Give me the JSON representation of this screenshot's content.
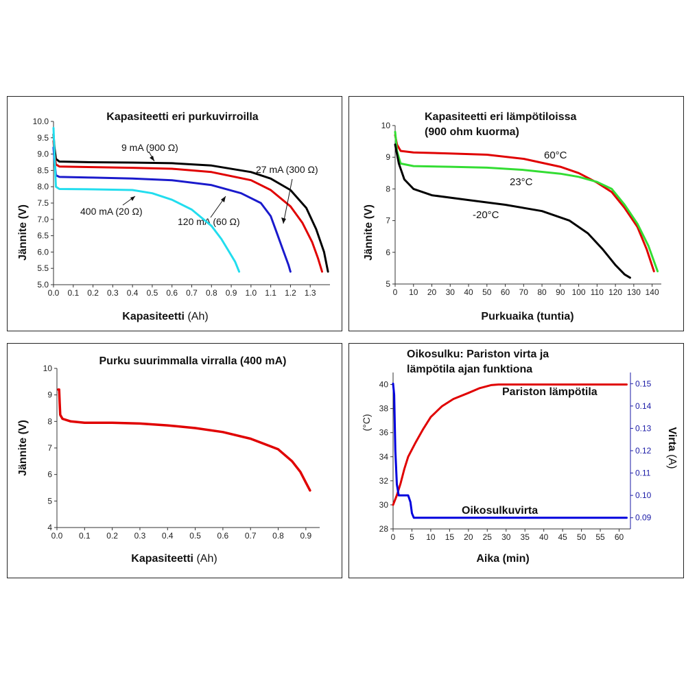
{
  "chart_data": [
    {
      "type": "line",
      "title": "Kapasiteetti eri purkuvirroilla",
      "xlabel": "Kapasiteetti",
      "xlabel_unit": "(Ah)",
      "ylabel": "Jännite (V)",
      "xlim": [
        0,
        1.4
      ],
      "ylim": [
        5.0,
        10.0
      ],
      "xticks": [
        "0.0",
        "0.1",
        "0.2",
        "0.3",
        "0.4",
        "0.5",
        "0.6",
        "0.7",
        "0.8",
        "0.9",
        "1.0",
        "1.1",
        "1.2",
        "1.3"
      ],
      "yticks": [
        "5.0",
        "5.5",
        "6.0",
        "6.5",
        "7.0",
        "7.5",
        "8.0",
        "8.5",
        "9.0",
        "9.5",
        "10.0"
      ],
      "series": [
        {
          "name": "9 mA (900 Ω)",
          "color": "#000000",
          "x": [
            0,
            0.005,
            0.012,
            0.03,
            0.2,
            0.4,
            0.6,
            0.8,
            1.0,
            1.1,
            1.2,
            1.28,
            1.33,
            1.37,
            1.39
          ],
          "y": [
            9.6,
            9.2,
            8.85,
            8.77,
            8.75,
            8.74,
            8.72,
            8.65,
            8.45,
            8.25,
            7.9,
            7.35,
            6.7,
            6.0,
            5.4
          ]
        },
        {
          "name": "27 mA (300 Ω)",
          "color": "#e00000",
          "x": [
            0,
            0.005,
            0.012,
            0.03,
            0.2,
            0.4,
            0.6,
            0.8,
            1.0,
            1.1,
            1.2,
            1.26,
            1.31,
            1.34,
            1.36
          ],
          "y": [
            9.4,
            9.0,
            8.68,
            8.62,
            8.6,
            8.58,
            8.55,
            8.45,
            8.2,
            7.9,
            7.4,
            6.9,
            6.3,
            5.8,
            5.4
          ]
        },
        {
          "name": "120 mA (60 Ω)",
          "color": "#1a1acc",
          "x": [
            0,
            0.005,
            0.012,
            0.03,
            0.2,
            0.4,
            0.6,
            0.8,
            0.95,
            1.05,
            1.1,
            1.13,
            1.16,
            1.19,
            1.2
          ],
          "y": [
            9.2,
            8.8,
            8.35,
            8.3,
            8.28,
            8.25,
            8.2,
            8.05,
            7.8,
            7.5,
            7.1,
            6.6,
            6.1,
            5.6,
            5.4
          ]
        },
        {
          "name": "400 mA (20 Ω)",
          "color": "#22ddee",
          "x": [
            0,
            0.005,
            0.012,
            0.03,
            0.2,
            0.4,
            0.5,
            0.6,
            0.7,
            0.8,
            0.85,
            0.89,
            0.92,
            0.94
          ],
          "y": [
            9.8,
            9.0,
            8.0,
            7.93,
            7.92,
            7.9,
            7.8,
            7.6,
            7.3,
            6.8,
            6.4,
            6.0,
            5.7,
            5.4
          ]
        }
      ]
    },
    {
      "type": "line",
      "title": "Kapasiteetti eri lämpötiloissa",
      "title_line2": "(900 ohm kuorma)",
      "xlabel": "Purkuaika (tuntia)",
      "ylabel": "Jännite (V)",
      "xlim": [
        0,
        145
      ],
      "ylim": [
        5,
        10
      ],
      "xticks": [
        "0",
        "10",
        "20",
        "30",
        "40",
        "50",
        "60",
        "70",
        "80",
        "90",
        "100",
        "110",
        "120",
        "130",
        "140"
      ],
      "yticks": [
        "5",
        "6",
        "7",
        "8",
        "9",
        "10"
      ],
      "series": [
        {
          "name": "60°C",
          "color": "#e00000",
          "x": [
            0,
            1,
            3,
            10,
            30,
            50,
            70,
            90,
            100,
            110,
            118,
            125,
            132,
            137,
            141
          ],
          "y": [
            9.7,
            9.4,
            9.2,
            9.15,
            9.12,
            9.08,
            8.95,
            8.7,
            8.5,
            8.2,
            7.9,
            7.4,
            6.8,
            6.1,
            5.4
          ]
        },
        {
          "name": "23°C",
          "color": "#33dd33",
          "x": [
            0,
            1,
            3,
            10,
            30,
            50,
            70,
            90,
            100,
            110,
            118,
            125,
            132,
            138,
            143
          ],
          "y": [
            9.8,
            9.2,
            8.8,
            8.72,
            8.7,
            8.67,
            8.6,
            8.48,
            8.38,
            8.22,
            8.0,
            7.5,
            6.9,
            6.2,
            5.4
          ]
        },
        {
          "name": "-20°C",
          "color": "#000000",
          "x": [
            0,
            2,
            5,
            10,
            20,
            40,
            60,
            80,
            95,
            105,
            113,
            120,
            125,
            128
          ],
          "y": [
            9.4,
            8.8,
            8.3,
            8.0,
            7.8,
            7.65,
            7.5,
            7.3,
            7.0,
            6.6,
            6.1,
            5.6,
            5.3,
            5.2
          ]
        }
      ]
    },
    {
      "type": "line",
      "title": "Purku suurimmalla virralla (400 mA)",
      "xlabel": "Kapasiteetti",
      "xlabel_unit": "(Ah)",
      "ylabel": "Jännite (V)",
      "xlim": [
        0,
        0.95
      ],
      "ylim": [
        4,
        10
      ],
      "xticks": [
        "0.0",
        "0.1",
        "0.2",
        "0.3",
        "0.4",
        "0.5",
        "0.6",
        "0.7",
        "0.8",
        "0.9"
      ],
      "yticks": [
        "4",
        "5",
        "6",
        "7",
        "8",
        "9",
        "10"
      ],
      "series": [
        {
          "name": "",
          "color": "#e00000",
          "x": [
            0.005,
            0.008,
            0.01,
            0.012,
            0.02,
            0.05,
            0.1,
            0.15,
            0.2,
            0.3,
            0.4,
            0.5,
            0.6,
            0.7,
            0.8,
            0.85,
            0.88,
            0.9,
            0.915
          ],
          "y": [
            9.2,
            9.2,
            8.7,
            8.25,
            8.1,
            8.0,
            7.95,
            7.95,
            7.95,
            7.92,
            7.85,
            7.75,
            7.6,
            7.35,
            6.95,
            6.5,
            6.1,
            5.7,
            5.4
          ]
        }
      ]
    },
    {
      "type": "line",
      "title": "Oikosulku: Pariston virta ja",
      "title_line2": "lämpötila ajan funktiona",
      "xlabel": "Aika (min)",
      "ylabel_left": "(°C)",
      "ylabel_right_main": "Virta",
      "ylabel_right_unit": "(A)",
      "xlim": [
        0,
        63
      ],
      "ylim_left": [
        28,
        41
      ],
      "ylim_right": [
        0.085,
        0.155
      ],
      "xticks": [
        "0",
        "5",
        "10",
        "15",
        "20",
        "25",
        "30",
        "35",
        "40",
        "45",
        "50",
        "55",
        "60"
      ],
      "yticks_left": [
        "28",
        "30",
        "32",
        "34",
        "36",
        "38",
        "40"
      ],
      "yticks_right": [
        "0.09",
        "0.10",
        "0.11",
        "0.12",
        "0.13",
        "0.14",
        "0.15"
      ],
      "series": [
        {
          "name": "Pariston lämpötila",
          "color": "#e00000",
          "axis": "left",
          "x": [
            0,
            1,
            2,
            3,
            4,
            6,
            8,
            10,
            13,
            16,
            20,
            23,
            26,
            28,
            30,
            40,
            50,
            62
          ],
          "y": [
            30,
            30.8,
            31.8,
            33,
            34,
            35.2,
            36.3,
            37.3,
            38.2,
            38.8,
            39.3,
            39.7,
            39.95,
            40,
            40,
            40,
            40,
            40
          ]
        },
        {
          "name": "Oikosulkuvirta",
          "color": "#0000dd",
          "axis": "right",
          "x": [
            0,
            0.3,
            0.6,
            1,
            1.5,
            2,
            3,
            4,
            4.6,
            5,
            5.5,
            6,
            10,
            20,
            30,
            40,
            50,
            62
          ],
          "y": [
            0.15,
            0.145,
            0.12,
            0.105,
            0.1,
            0.1,
            0.1,
            0.1,
            0.097,
            0.092,
            0.09,
            0.09,
            0.09,
            0.09,
            0.09,
            0.09,
            0.09,
            0.09
          ]
        }
      ]
    }
  ]
}
